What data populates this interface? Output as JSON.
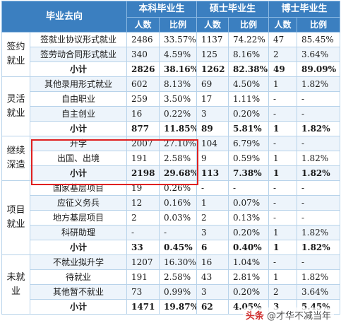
{
  "header": {
    "destination": "毕业去向",
    "groups": [
      "本科毕业生",
      "硕士毕业生",
      "博士毕业生"
    ],
    "sub_count": "人数",
    "sub_ratio": "比例"
  },
  "categories": [
    {
      "name": "签约就业",
      "rows": [
        {
          "item": "签就业协议形式就业",
          "values": [
            "2486",
            "33.57%",
            "1137",
            "74.22%",
            "47",
            "85.45%"
          ]
        },
        {
          "item": "签劳动合同形式就业",
          "values": [
            "340",
            "4.59%",
            "125",
            "8.16%",
            "2",
            "3.64%"
          ]
        },
        {
          "item": "小计",
          "values": [
            "2826",
            "38.16%",
            "1262",
            "82.38%",
            "49",
            "89.09%"
          ]
        }
      ]
    },
    {
      "name": "灵活就业",
      "rows": [
        {
          "item": "其他录用形式就业",
          "values": [
            "602",
            "8.13%",
            "69",
            "4.50%",
            "1",
            "1.82%"
          ]
        },
        {
          "item": "自由职业",
          "values": [
            "259",
            "3.50%",
            "17",
            "1.11%",
            "-",
            "-"
          ]
        },
        {
          "item": "自主创业",
          "values": [
            "16",
            "0.22%",
            "3",
            "0.20%",
            "-",
            "-"
          ]
        },
        {
          "item": "小计",
          "values": [
            "877",
            "11.85%",
            "89",
            "5.81%",
            "1",
            "1.82%"
          ]
        }
      ]
    },
    {
      "name": "继续深造",
      "rows": [
        {
          "item": "升学",
          "values": [
            "2007",
            "27.10%",
            "104",
            "6.79%",
            "-",
            "-"
          ]
        },
        {
          "item": "出国、出境",
          "values": [
            "191",
            "2.58%",
            "9",
            "0.59%",
            "1",
            "1.82%"
          ]
        },
        {
          "item": "小计",
          "values": [
            "2198",
            "29.68%",
            "113",
            "7.38%",
            "1",
            "1.82%"
          ]
        }
      ]
    },
    {
      "name": "项目就业",
      "rows": [
        {
          "item": "国家基层项目",
          "values": [
            "19",
            "0.26%",
            "-",
            "-",
            "-",
            "-"
          ]
        },
        {
          "item": "应征义务兵",
          "values": [
            "12",
            "0.16%",
            "1",
            "0.07%",
            "-",
            "-"
          ]
        },
        {
          "item": "地方基层项目",
          "values": [
            "2",
            "0.03%",
            "2",
            "0.13%",
            "-",
            "-"
          ]
        },
        {
          "item": "科研助理",
          "values": [
            "-",
            "-",
            "3",
            "0.20%",
            "1",
            "1.82%"
          ]
        },
        {
          "item": "小计",
          "values": [
            "33",
            "0.45%",
            "6",
            "0.40%",
            "1",
            "1.82%"
          ]
        }
      ]
    },
    {
      "name": "未就业",
      "rows": [
        {
          "item": "不就业拟升学",
          "values": [
            "1207",
            "16.30%",
            "16",
            "1.04%",
            "-",
            "-"
          ]
        },
        {
          "item": "待就业",
          "values": [
            "191",
            "2.58%",
            "43",
            "2.81%",
            "1",
            "1.82%"
          ]
        },
        {
          "item": "其他暂不就业",
          "values": [
            "73",
            "0.99%",
            "3",
            "0.20%",
            "2",
            "3.64%"
          ]
        },
        {
          "item": "小计",
          "values": [
            "1471",
            "19.87%",
            "62",
            "4.05%",
            "3",
            "5.45%"
          ]
        }
      ]
    }
  ],
  "highlight_color": "#e02020",
  "header_color": "#3b7fc0",
  "watermark": {
    "logo": "头条",
    "text": "@才华不减当年"
  }
}
